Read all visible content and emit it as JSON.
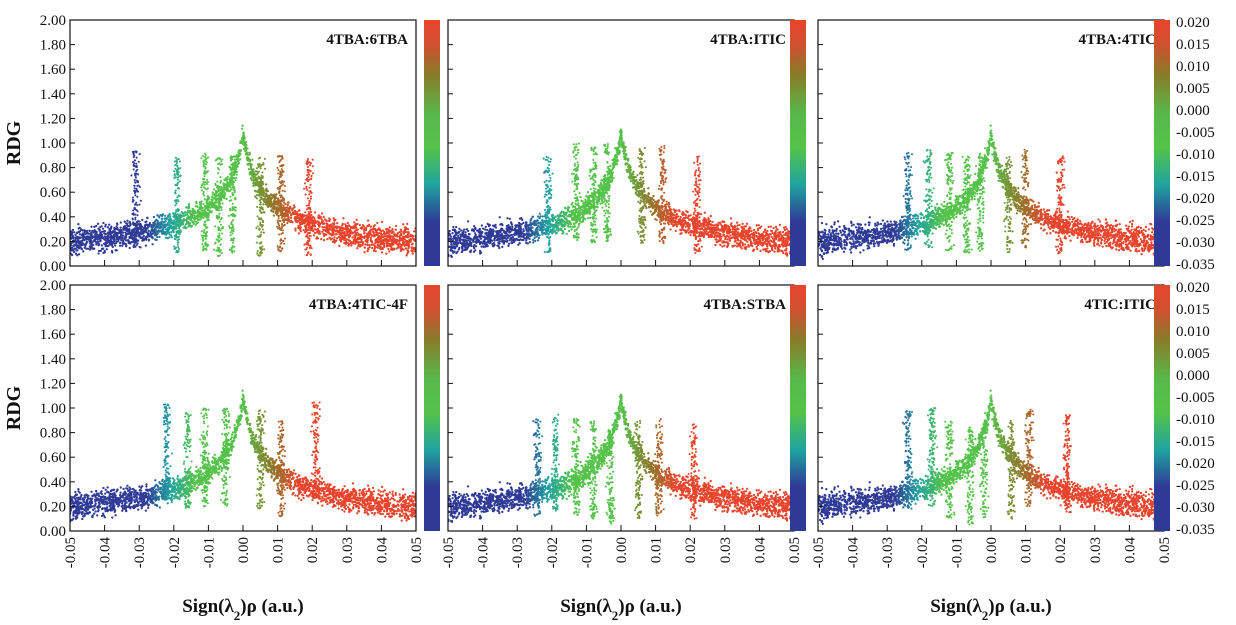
{
  "colors": {
    "blue": "#2f3a96",
    "cyan": "#1fa3a0",
    "green": "#55c24a",
    "olive": "#8a7a2a",
    "red": "#e8442c"
  },
  "figure": {
    "y_axis_label": "RDG",
    "x_axis_label_prefix": "Sign(λ",
    "x_axis_label_sub": "2",
    "x_axis_label_suffix": ")ρ (a.u.)"
  },
  "chart_data": [
    {
      "type": "scatter",
      "title": "4TBA:6TBA",
      "xlabel": "Sign(λ2)ρ (a.u.)",
      "ylabel": "RDG",
      "xlim": [
        -0.05,
        0.05
      ],
      "ylim": [
        0.0,
        2.0
      ],
      "x_ticks": [
        "-0.05",
        "-0.04",
        "-0.03",
        "-0.02",
        "-0.01",
        "0.00",
        "0.01",
        "0.02",
        "0.03",
        "0.04",
        "0.05"
      ],
      "y_ticks": [
        "0.00",
        "0.20",
        "0.40",
        "0.60",
        "0.80",
        "1.00",
        "1.20",
        "1.40",
        "1.60",
        "1.80",
        "2.00"
      ],
      "spikes": [
        {
          "x": -0.031,
          "min_rdg": 0.15
        },
        {
          "x": -0.019,
          "min_rdg": 0.1
        },
        {
          "x": -0.011,
          "min_rdg": 0.12
        },
        {
          "x": -0.007,
          "min_rdg": 0.08
        },
        {
          "x": -0.003,
          "min_rdg": 0.1
        },
        {
          "x": 0.005,
          "min_rdg": 0.08
        },
        {
          "x": 0.011,
          "min_rdg": 0.1
        },
        {
          "x": 0.019,
          "min_rdg": 0.07
        }
      ],
      "colorbar": {
        "ticks": []
      }
    },
    {
      "type": "scatter",
      "title": "4TBA:ITIC",
      "xlabel": "Sign(λ2)ρ (a.u.)",
      "ylabel": "RDG",
      "xlim": [
        -0.05,
        0.05
      ],
      "ylim": [
        0.0,
        2.0
      ],
      "x_ticks": [
        "-0.05",
        "-0.04",
        "-0.03",
        "-0.02",
        "-0.01",
        "0.00",
        "0.01",
        "0.02",
        "0.03",
        "0.04",
        "0.05"
      ],
      "y_ticks": [],
      "spikes": [
        {
          "x": -0.021,
          "min_rdg": 0.1
        },
        {
          "x": -0.013,
          "min_rdg": 0.2
        },
        {
          "x": -0.008,
          "min_rdg": 0.18
        },
        {
          "x": -0.004,
          "min_rdg": 0.2
        },
        {
          "x": 0.006,
          "min_rdg": 0.18
        },
        {
          "x": 0.012,
          "min_rdg": 0.18
        },
        {
          "x": 0.022,
          "min_rdg": 0.1
        }
      ],
      "colorbar": {
        "ticks": []
      }
    },
    {
      "type": "scatter",
      "title": "4TBA:4TIC",
      "xlabel": "Sign(λ2)ρ (a.u.)",
      "ylabel": "RDG",
      "xlim": [
        -0.05,
        0.05
      ],
      "ylim": [
        0.0,
        2.0
      ],
      "x_ticks": [
        "-0.05",
        "-0.04",
        "-0.03",
        "-0.02",
        "-0.01",
        "0.00",
        "0.01",
        "0.02",
        "0.03",
        "0.04",
        "0.05"
      ],
      "y_ticks": [],
      "spikes": [
        {
          "x": -0.024,
          "min_rdg": 0.12
        },
        {
          "x": -0.018,
          "min_rdg": 0.15
        },
        {
          "x": -0.012,
          "min_rdg": 0.12
        },
        {
          "x": -0.007,
          "min_rdg": 0.1
        },
        {
          "x": -0.003,
          "min_rdg": 0.12
        },
        {
          "x": 0.005,
          "min_rdg": 0.1
        },
        {
          "x": 0.01,
          "min_rdg": 0.15
        },
        {
          "x": 0.02,
          "min_rdg": 0.1
        }
      ],
      "colorbar": {
        "ticks": [
          "0.020",
          "0.015",
          "0.010",
          "0.005",
          "0.000",
          "-0.005",
          "-0.010",
          "-0.015",
          "-0.020",
          "-0.025",
          "-0.030",
          "-0.035"
        ]
      }
    },
    {
      "type": "scatter",
      "title": "4TBA:4TIC-4F",
      "xlabel": "Sign(λ2)ρ (a.u.)",
      "ylabel": "RDG",
      "xlim": [
        -0.05,
        0.05
      ],
      "ylim": [
        0.0,
        2.0
      ],
      "x_ticks": [
        "-0.05",
        "-0.04",
        "-0.03",
        "-0.02",
        "-0.01",
        "0.00",
        "0.01",
        "0.02",
        "0.03",
        "0.04",
        "0.05"
      ],
      "y_ticks": [
        "0.00",
        "0.20",
        "0.40",
        "0.60",
        "0.80",
        "1.00",
        "1.20",
        "1.40",
        "1.60",
        "1.80",
        "2.00"
      ],
      "spikes": [
        {
          "x": -0.022,
          "min_rdg": 0.25
        },
        {
          "x": -0.016,
          "min_rdg": 0.18
        },
        {
          "x": -0.011,
          "min_rdg": 0.2
        },
        {
          "x": -0.005,
          "min_rdg": 0.2
        },
        {
          "x": 0.005,
          "min_rdg": 0.18
        },
        {
          "x": 0.011,
          "min_rdg": 0.1
        },
        {
          "x": 0.021,
          "min_rdg": 0.25
        }
      ],
      "colorbar": {
        "ticks": []
      }
    },
    {
      "type": "scatter",
      "title": "4TBA:STBA",
      "xlabel": "Sign(λ2)ρ (a.u.)",
      "ylabel": "RDG",
      "xlim": [
        -0.05,
        0.05
      ],
      "ylim": [
        0.0,
        2.0
      ],
      "x_ticks": [
        "-0.05",
        "-0.04",
        "-0.03",
        "-0.02",
        "-0.01",
        "0.00",
        "0.01",
        "0.02",
        "0.03",
        "0.04",
        "0.05"
      ],
      "y_ticks": [],
      "spikes": [
        {
          "x": -0.024,
          "min_rdg": 0.12
        },
        {
          "x": -0.019,
          "min_rdg": 0.15
        },
        {
          "x": -0.013,
          "min_rdg": 0.12
        },
        {
          "x": -0.008,
          "min_rdg": 0.1
        },
        {
          "x": -0.003,
          "min_rdg": 0.05
        },
        {
          "x": 0.005,
          "min_rdg": 0.1
        },
        {
          "x": 0.011,
          "min_rdg": 0.12
        },
        {
          "x": 0.021,
          "min_rdg": 0.08
        }
      ],
      "colorbar": {
        "ticks": []
      }
    },
    {
      "type": "scatter",
      "title": "4TIC:ITIC",
      "xlabel": "Sign(λ2)ρ (a.u.)",
      "ylabel": "RDG",
      "xlim": [
        -0.05,
        0.05
      ],
      "ylim": [
        0.0,
        2.0
      ],
      "x_ticks": [
        "-0.05",
        "-0.04",
        "-0.03",
        "-0.02",
        "-0.01",
        "0.00",
        "0.01",
        "0.02",
        "0.03",
        "0.04",
        "0.05"
      ],
      "y_ticks": [],
      "spikes": [
        {
          "x": -0.024,
          "min_rdg": 0.18
        },
        {
          "x": -0.017,
          "min_rdg": 0.2
        },
        {
          "x": -0.012,
          "min_rdg": 0.1
        },
        {
          "x": -0.006,
          "min_rdg": 0.05
        },
        {
          "x": -0.002,
          "min_rdg": 0.1
        },
        {
          "x": 0.006,
          "min_rdg": 0.1
        },
        {
          "x": 0.011,
          "min_rdg": 0.2
        },
        {
          "x": 0.022,
          "min_rdg": 0.15
        }
      ],
      "colorbar": {
        "ticks": [
          "0.020",
          "0.015",
          "0.010",
          "0.005",
          "0.000",
          "-0.005",
          "-0.010",
          "-0.015",
          "-0.020",
          "-0.025",
          "-0.030",
          "-0.035"
        ]
      }
    }
  ]
}
